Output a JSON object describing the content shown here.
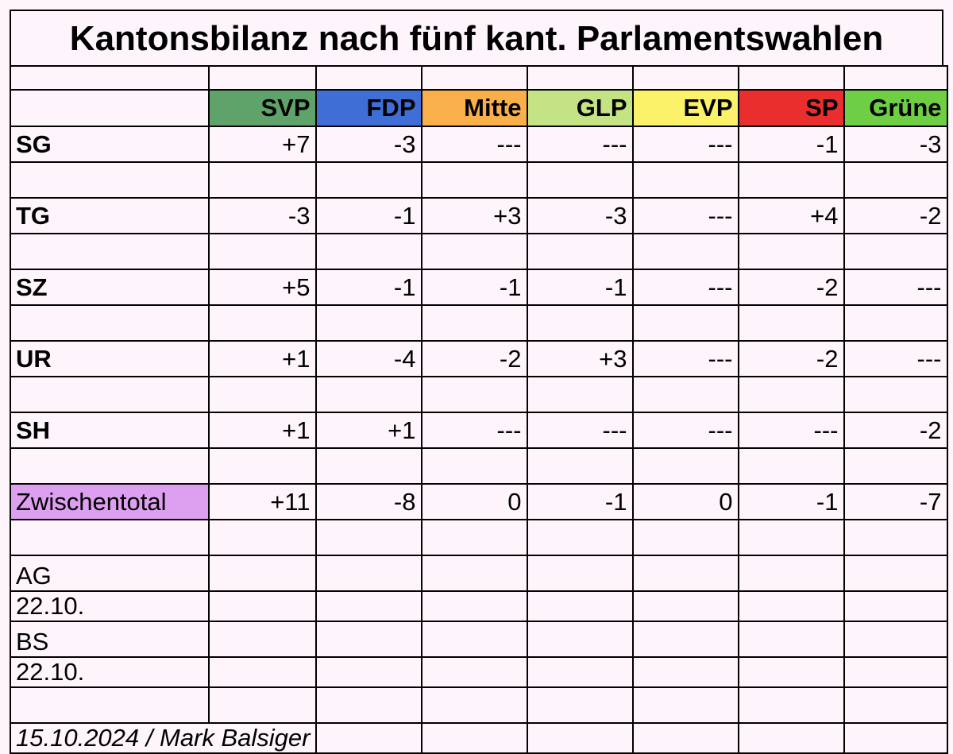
{
  "title": "Kantonsbilanz nach fünf kant. Parlamentswahlen",
  "parties": [
    {
      "name": "SVP",
      "color": "#5fa36a"
    },
    {
      "name": "FDP",
      "color": "#3f6fd6"
    },
    {
      "name": "Mitte",
      "color": "#f9b04b"
    },
    {
      "name": "GLP",
      "color": "#c3e385"
    },
    {
      "name": "EVP",
      "color": "#fbf26a"
    },
    {
      "name": "SP",
      "color": "#ea2e2e"
    },
    {
      "name": "Grüne",
      "color": "#6ecf45"
    }
  ],
  "rows": [
    {
      "canton": "SG",
      "values": [
        "+7",
        "-3",
        "---",
        "---",
        "---",
        "-1",
        "-3"
      ]
    },
    {
      "canton": "TG",
      "values": [
        "-3",
        "-1",
        "+3",
        "-3",
        "---",
        "+4",
        "-2"
      ]
    },
    {
      "canton": "SZ",
      "values": [
        "+5",
        "-1",
        "-1",
        "-1",
        "---",
        "-2",
        "---"
      ]
    },
    {
      "canton": "UR",
      "values": [
        "+1",
        "-4",
        "-2",
        "+3",
        "---",
        "-2",
        "---"
      ]
    },
    {
      "canton": "SH",
      "values": [
        "+1",
        "+1",
        "---",
        "---",
        "---",
        "---",
        "-2"
      ]
    }
  ],
  "subtotal": {
    "label": "Zwischentotal",
    "color": "#dd9ff0",
    "values": [
      "+11",
      "-8",
      "0",
      "-1",
      "0",
      "-1",
      "-7"
    ]
  },
  "pending": [
    {
      "canton": "AG",
      "date": "22.10."
    },
    {
      "canton": "BS",
      "date": "22.10."
    }
  ],
  "footer": "15.10.2024 / Mark Balsiger"
}
